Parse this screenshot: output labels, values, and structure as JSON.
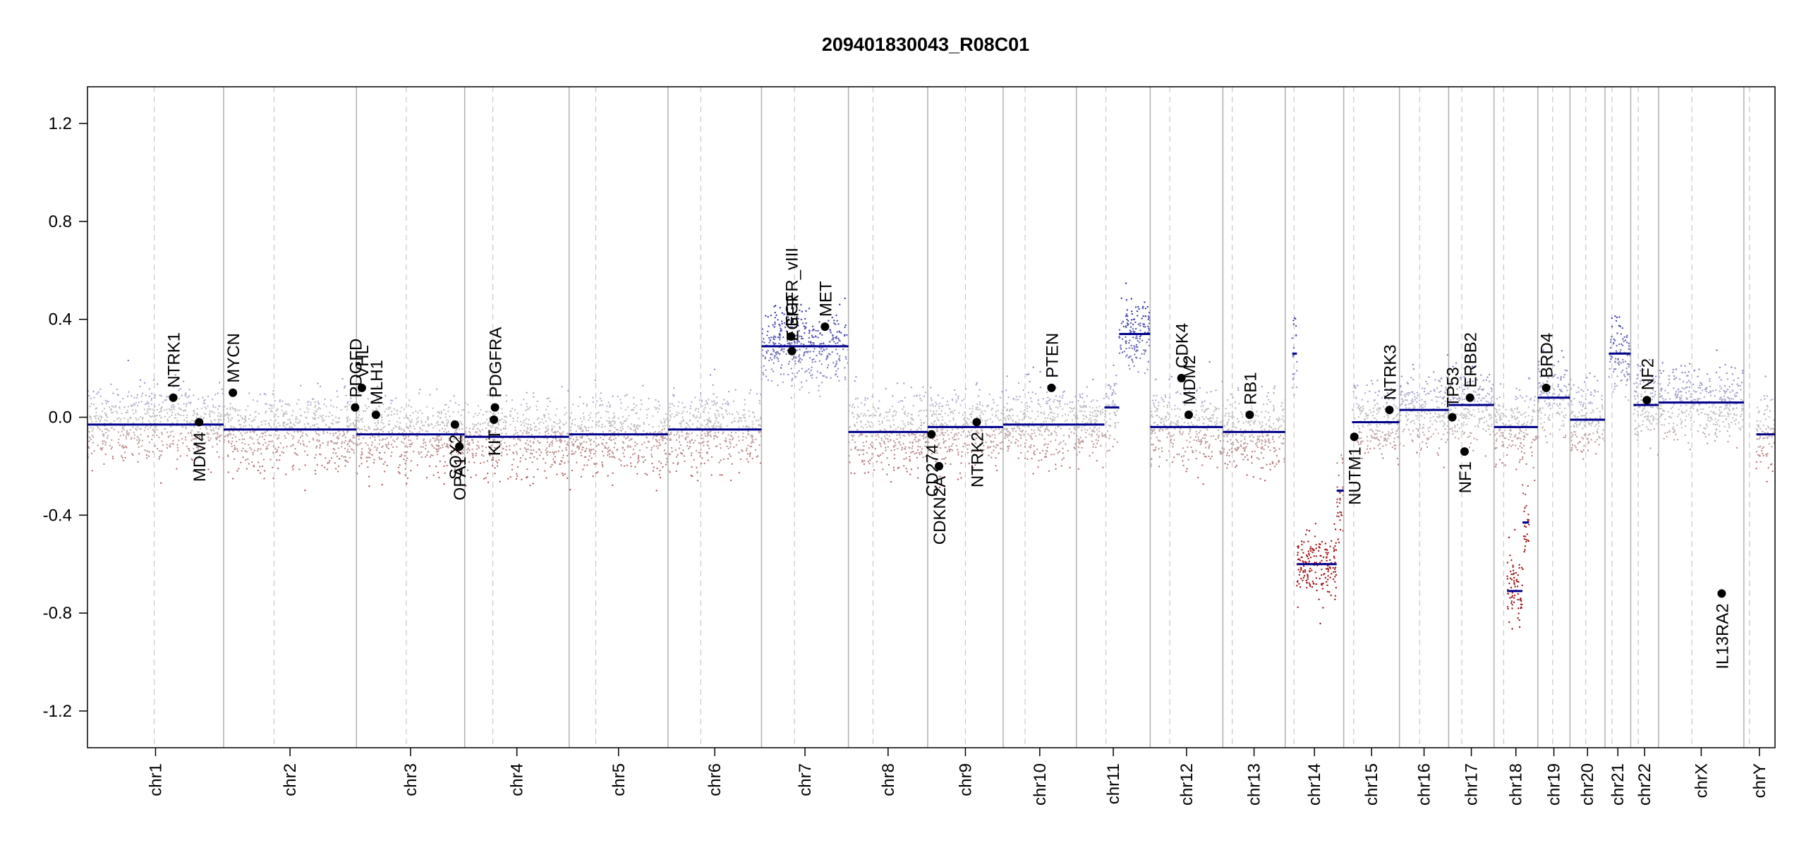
{
  "chart_data": {
    "type": "scatter",
    "title": "209401830043_R08C01",
    "xlabel": "",
    "ylabel": "",
    "ylim": [
      -1.35,
      1.35
    ],
    "yticks": [
      "-1.2",
      "-0.8",
      "-0.4",
      "0.0",
      "0.4",
      "0.8",
      "1.2"
    ],
    "grid": false,
    "legend": "none",
    "colors": {
      "segment": "#00008b",
      "gain": "#3636a6",
      "loss": "#a01414",
      "neutral": "#c0c0c0",
      "chrom_boundary": "#b0b0b0",
      "centromere": "#c8c8c8",
      "gene_point": "#000000"
    },
    "chromosomes": [
      {
        "name": "chr1",
        "size": 249,
        "cen": 0.49
      },
      {
        "name": "chr2",
        "size": 243,
        "cen": 0.38
      },
      {
        "name": "chr3",
        "size": 198,
        "cen": 0.46
      },
      {
        "name": "chr4",
        "size": 191,
        "cen": 0.27
      },
      {
        "name": "chr5",
        "size": 181,
        "cen": 0.27
      },
      {
        "name": "chr6",
        "size": 171,
        "cen": 0.35
      },
      {
        "name": "chr7",
        "size": 159,
        "cen": 0.38
      },
      {
        "name": "chr8",
        "size": 145,
        "cen": 0.31
      },
      {
        "name": "chr9",
        "size": 138,
        "cen": 0.5
      },
      {
        "name": "chr10",
        "size": 134,
        "cen": 0.3
      },
      {
        "name": "chr11",
        "size": 135,
        "cen": 0.4
      },
      {
        "name": "chr12",
        "size": 133,
        "cen": 0.27
      },
      {
        "name": "chr13",
        "size": 114,
        "cen": 0.15
      },
      {
        "name": "chr14",
        "size": 107,
        "cen": 0.15
      },
      {
        "name": "chr15",
        "size": 102,
        "cen": 0.18
      },
      {
        "name": "chr16",
        "size": 90,
        "cen": 0.41
      },
      {
        "name": "chr17",
        "size": 83,
        "cen": 0.29
      },
      {
        "name": "chr18",
        "size": 80,
        "cen": 0.22
      },
      {
        "name": "chr19",
        "size": 59,
        "cen": 0.46
      },
      {
        "name": "chr20",
        "size": 64,
        "cen": 0.45
      },
      {
        "name": "chr21",
        "size": 47,
        "cen": 0.27
      },
      {
        "name": "chr22",
        "size": 51,
        "cen": 0.27
      },
      {
        "name": "chrX",
        "size": 156,
        "cen": 0.39
      },
      {
        "name": "chrY",
        "size": 57,
        "cen": 0.18
      }
    ],
    "segments": [
      {
        "chr": "chr1",
        "start": 0.0,
        "end": 1.0,
        "value": -0.03
      },
      {
        "chr": "chr2",
        "start": 0.0,
        "end": 1.0,
        "value": -0.05
      },
      {
        "chr": "chr3",
        "start": 0.0,
        "end": 1.0,
        "value": -0.07
      },
      {
        "chr": "chr4",
        "start": 0.0,
        "end": 1.0,
        "value": -0.08
      },
      {
        "chr": "chr5",
        "start": 0.0,
        "end": 1.0,
        "value": -0.07
      },
      {
        "chr": "chr6",
        "start": 0.0,
        "end": 1.0,
        "value": -0.05
      },
      {
        "chr": "chr7",
        "start": 0.0,
        "end": 1.0,
        "value": 0.29
      },
      {
        "chr": "chr8",
        "start": 0.0,
        "end": 1.0,
        "value": -0.06
      },
      {
        "chr": "chr9",
        "start": 0.0,
        "end": 1.0,
        "value": -0.04
      },
      {
        "chr": "chr10",
        "start": 0.0,
        "end": 1.0,
        "value": -0.03
      },
      {
        "chr": "chr11",
        "start": 0.0,
        "end": 0.38,
        "value": -0.03
      },
      {
        "chr": "chr11",
        "start": 0.38,
        "end": 0.58,
        "value": 0.04
      },
      {
        "chr": "chr11",
        "start": 0.58,
        "end": 1.0,
        "value": 0.34
      },
      {
        "chr": "chr12",
        "start": 0.0,
        "end": 1.0,
        "value": -0.04
      },
      {
        "chr": "chr13",
        "start": 0.0,
        "end": 1.0,
        "value": -0.06
      },
      {
        "chr": "chr14",
        "start": 0.12,
        "end": 0.2,
        "value": 0.26
      },
      {
        "chr": "chr14",
        "start": 0.2,
        "end": 0.88,
        "value": -0.6
      },
      {
        "chr": "chr14",
        "start": 0.88,
        "end": 1.0,
        "value": -0.3
      },
      {
        "chr": "chr15",
        "start": 0.15,
        "end": 1.0,
        "value": -0.02
      },
      {
        "chr": "chr16",
        "start": 0.0,
        "end": 1.0,
        "value": 0.03
      },
      {
        "chr": "chr17",
        "start": 0.0,
        "end": 1.0,
        "value": 0.05
      },
      {
        "chr": "chr18",
        "start": 0.0,
        "end": 1.0,
        "value": -0.04
      },
      {
        "chr": "chr18",
        "start": 0.3,
        "end": 0.65,
        "value": -0.71
      },
      {
        "chr": "chr18",
        "start": 0.65,
        "end": 0.8,
        "value": -0.43
      },
      {
        "chr": "chr19",
        "start": 0.0,
        "end": 1.0,
        "value": 0.08
      },
      {
        "chr": "chr20",
        "start": 0.0,
        "end": 1.0,
        "value": -0.01
      },
      {
        "chr": "chr21",
        "start": 0.15,
        "end": 1.0,
        "value": 0.26
      },
      {
        "chr": "chr22",
        "start": 0.1,
        "end": 1.0,
        "value": 0.05
      },
      {
        "chr": "chrX",
        "start": 0.0,
        "end": 1.0,
        "value": 0.06
      },
      {
        "chr": "chrY",
        "start": 0.4,
        "end": 1.0,
        "value": -0.07
      }
    ],
    "genes": [
      {
        "name": "NTRK1",
        "chr": "chr1",
        "pos": 0.63,
        "value": 0.08,
        "side": "above"
      },
      {
        "name": "MDM4",
        "chr": "chr1",
        "pos": 0.82,
        "value": -0.02,
        "side": "below"
      },
      {
        "name": "MYCN",
        "chr": "chr2",
        "pos": 0.07,
        "value": 0.1,
        "side": "above"
      },
      {
        "name": "PDGFD",
        "chr": "chr2",
        "pos": 0.99,
        "value": 0.04,
        "side": "above"
      },
      {
        "name": "VHL",
        "chr": "chr3",
        "pos": 0.05,
        "value": 0.12,
        "side": "above"
      },
      {
        "name": "MLH1",
        "chr": "chr3",
        "pos": 0.18,
        "value": 0.01,
        "side": "above"
      },
      {
        "name": "SOX2",
        "chr": "chr3",
        "pos": 0.91,
        "value": -0.03,
        "side": "below"
      },
      {
        "name": "OPA1",
        "chr": "chr3",
        "pos": 0.95,
        "value": -0.12,
        "side": "below"
      },
      {
        "name": "KIT",
        "chr": "chr4",
        "pos": 0.28,
        "value": -0.01,
        "side": "below"
      },
      {
        "name": "PDGFRA",
        "chr": "chr4",
        "pos": 0.29,
        "value": 0.04,
        "side": "above"
      },
      {
        "name": "EGFR",
        "chr": "chr7",
        "pos": 0.35,
        "value": 0.27,
        "side": "above"
      },
      {
        "name": "EGFR_vIII",
        "chr": "chr7",
        "pos": 0.34,
        "value": 0.33,
        "side": "above"
      },
      {
        "name": "MET",
        "chr": "chr7",
        "pos": 0.73,
        "value": 0.37,
        "side": "above"
      },
      {
        "name": "CD274",
        "chr": "chr9",
        "pos": 0.05,
        "value": -0.07,
        "side": "below"
      },
      {
        "name": "CDKN2A",
        "chr": "chr9",
        "pos": 0.15,
        "value": -0.2,
        "side": "below"
      },
      {
        "name": "NTRK2",
        "chr": "chr9",
        "pos": 0.65,
        "value": -0.02,
        "side": "below"
      },
      {
        "name": "PTEN",
        "chr": "chr10",
        "pos": 0.66,
        "value": 0.12,
        "side": "above"
      },
      {
        "name": "MDM2",
        "chr": "chr12",
        "pos": 0.53,
        "value": 0.01,
        "side": "above"
      },
      {
        "name": "CDK4",
        "chr": "chr12",
        "pos": 0.43,
        "value": 0.16,
        "side": "above"
      },
      {
        "name": "RB1",
        "chr": "chr13",
        "pos": 0.43,
        "value": 0.01,
        "side": "above"
      },
      {
        "name": "NUTM1",
        "chr": "chr15",
        "pos": 0.19,
        "value": -0.08,
        "side": "below"
      },
      {
        "name": "NTRK3",
        "chr": "chr15",
        "pos": 0.82,
        "value": 0.03,
        "side": "above"
      },
      {
        "name": "TP53",
        "chr": "chr17",
        "pos": 0.08,
        "value": 0.0,
        "side": "above"
      },
      {
        "name": "NF1",
        "chr": "chr17",
        "pos": 0.35,
        "value": -0.14,
        "side": "below"
      },
      {
        "name": "ERBB2",
        "chr": "chr17",
        "pos": 0.47,
        "value": 0.08,
        "side": "above"
      },
      {
        "name": "BRD4",
        "chr": "chr19",
        "pos": 0.26,
        "value": 0.12,
        "side": "above"
      },
      {
        "name": "NF2",
        "chr": "chr22",
        "pos": 0.58,
        "value": 0.07,
        "side": "above"
      },
      {
        "name": "IL13RA2",
        "chr": "chrX",
        "pos": 0.74,
        "value": -0.72,
        "side": "below"
      }
    ]
  }
}
